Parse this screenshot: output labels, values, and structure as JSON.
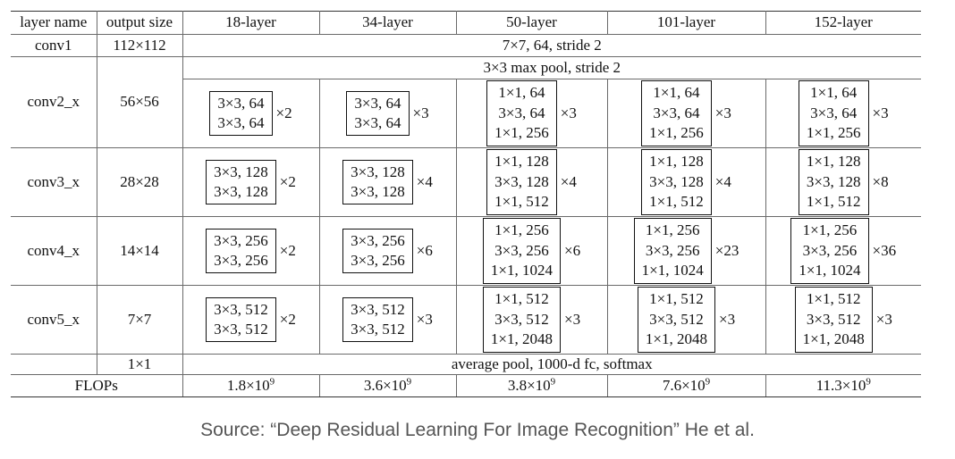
{
  "table": {
    "headers": [
      "layer name",
      "output size",
      "18-layer",
      "34-layer",
      "50-layer",
      "101-layer",
      "152-layer"
    ],
    "conv1": {
      "name": "conv1",
      "size": "112×112",
      "spec": "7×7, 64, stride 2"
    },
    "conv2": {
      "name": "conv2_x",
      "size": "56×56",
      "pool": "3×3 max pool, stride 2",
      "cells": [
        {
          "lines": [
            "3×3, 64",
            "3×3, 64"
          ],
          "mult": "×2"
        },
        {
          "lines": [
            "3×3, 64",
            "3×3, 64"
          ],
          "mult": "×3"
        },
        {
          "lines": [
            "1×1, 64",
            "3×3, 64",
            "1×1, 256"
          ],
          "mult": "×3"
        },
        {
          "lines": [
            "1×1, 64",
            "3×3, 64",
            "1×1, 256"
          ],
          "mult": "×3"
        },
        {
          "lines": [
            "1×1, 64",
            "3×3, 64",
            "1×1, 256"
          ],
          "mult": "×3"
        }
      ]
    },
    "conv3": {
      "name": "conv3_x",
      "size": "28×28",
      "cells": [
        {
          "lines": [
            "3×3, 128",
            "3×3, 128"
          ],
          "mult": "×2"
        },
        {
          "lines": [
            "3×3, 128",
            "3×3, 128"
          ],
          "mult": "×4"
        },
        {
          "lines": [
            "1×1, 128",
            "3×3, 128",
            "1×1, 512"
          ],
          "mult": "×4"
        },
        {
          "lines": [
            "1×1, 128",
            "3×3, 128",
            "1×1, 512"
          ],
          "mult": "×4"
        },
        {
          "lines": [
            "1×1, 128",
            "3×3, 128",
            "1×1, 512"
          ],
          "mult": "×8"
        }
      ]
    },
    "conv4": {
      "name": "conv4_x",
      "size": "14×14",
      "cells": [
        {
          "lines": [
            "3×3, 256",
            "3×3, 256"
          ],
          "mult": "×2"
        },
        {
          "lines": [
            "3×3, 256",
            "3×3, 256"
          ],
          "mult": "×6"
        },
        {
          "lines": [
            "1×1, 256",
            "3×3, 256",
            "1×1, 1024"
          ],
          "mult": "×6"
        },
        {
          "lines": [
            "1×1, 256",
            "3×3, 256",
            "1×1, 1024"
          ],
          "mult": "×23"
        },
        {
          "lines": [
            "1×1, 256",
            "3×3, 256",
            "1×1, 1024"
          ],
          "mult": "×36"
        }
      ]
    },
    "conv5": {
      "name": "conv5_x",
      "size": "7×7",
      "cells": [
        {
          "lines": [
            "3×3, 512",
            "3×3, 512"
          ],
          "mult": "×2"
        },
        {
          "lines": [
            "3×3, 512",
            "3×3, 512"
          ],
          "mult": "×3"
        },
        {
          "lines": [
            "1×1, 512",
            "3×3, 512",
            "1×1, 2048"
          ],
          "mult": "×3"
        },
        {
          "lines": [
            "1×1, 512",
            "3×3, 512",
            "1×1, 2048"
          ],
          "mult": "×3"
        },
        {
          "lines": [
            "1×1, 512",
            "3×3, 512",
            "1×1, 2048"
          ],
          "mult": "×3"
        }
      ]
    },
    "final": {
      "size": "1×1",
      "spec": "average pool, 1000-d fc, softmax"
    },
    "flops": {
      "label": "FLOPs",
      "values": [
        {
          "mantissa": "1.8×10",
          "exp": "9"
        },
        {
          "mantissa": "3.6×10",
          "exp": "9"
        },
        {
          "mantissa": "3.8×10",
          "exp": "9"
        },
        {
          "mantissa": "7.6×10",
          "exp": "9"
        },
        {
          "mantissa": "11.3×10",
          "exp": "9"
        }
      ]
    }
  },
  "caption": "Source: “Deep Residual Learning For Image Recognition” He et al."
}
